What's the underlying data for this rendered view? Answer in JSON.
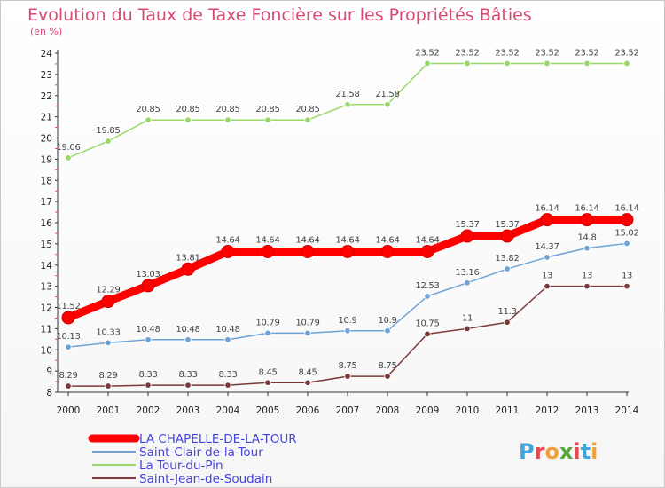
{
  "chart_data": {
    "type": "line",
    "title": "Evolution du Taux de Taxe Foncière sur les Propriétés Bâties",
    "subtitle": "(en %)",
    "xlabel": "",
    "ylabel": "",
    "ylim": [
      8,
      24
    ],
    "yticks": [
      "8",
      "9",
      "10",
      "11",
      "12",
      "13",
      "14",
      "15",
      "16",
      "17",
      "18",
      "19",
      "20",
      "21",
      "22",
      "23",
      "24"
    ],
    "x": [
      "2000",
      "2001",
      "2002",
      "2003",
      "2004",
      "2005",
      "2006",
      "2007",
      "2008",
      "2009",
      "2010",
      "2011",
      "2012",
      "2013",
      "2014"
    ],
    "grid": false,
    "legend": "bottom-left",
    "series": [
      {
        "name": "LA CHAPELLE-DE-LA-TOUR",
        "color": "#ff0000",
        "values": [
          11.52,
          12.29,
          13.03,
          13.81,
          14.64,
          14.64,
          14.64,
          14.64,
          14.64,
          14.64,
          15.37,
          15.37,
          16.14,
          16.14,
          16.14
        ],
        "labels": [
          "11.52",
          "12.29",
          "13.03",
          "13.81",
          "14.64",
          "14.64",
          "14.64",
          "14.64",
          "14.64",
          "14.64",
          "15.37",
          "15.37",
          "16.14",
          "16.14",
          "16.14"
        ]
      },
      {
        "name": "Saint-Clair-de-la-Tour",
        "color": "#6fa3d6",
        "values": [
          10.13,
          10.33,
          10.48,
          10.48,
          10.48,
          10.79,
          10.79,
          10.9,
          10.9,
          12.53,
          13.16,
          13.82,
          14.37,
          14.8,
          15.02
        ],
        "labels": [
          "10.13",
          "10.33",
          "10.48",
          "10.48",
          "10.48",
          "10.79",
          "10.79",
          "10.9",
          "10.9",
          "12.53",
          "13.16",
          "13.82",
          "14.37",
          "14.8",
          "15.02"
        ]
      },
      {
        "name": "La Tour-du-Pin",
        "color": "#99d86a",
        "values": [
          19.06,
          19.85,
          20.85,
          20.85,
          20.85,
          20.85,
          20.85,
          21.58,
          21.58,
          23.52,
          23.52,
          23.52,
          23.52,
          23.52,
          23.52
        ],
        "labels": [
          "19.06",
          "19.85",
          "20.85",
          "20.85",
          "20.85",
          "20.85",
          "20.85",
          "21.58",
          "21.58",
          "23.52",
          "23.52",
          "23.52",
          "23.52",
          "23.52",
          "23.52"
        ]
      },
      {
        "name": "Saint-Jean-de-Soudain",
        "color": "#7a3a3a",
        "values": [
          8.29,
          8.29,
          8.33,
          8.33,
          8.33,
          8.45,
          8.45,
          8.75,
          8.75,
          10.75,
          11,
          11.3,
          13,
          13,
          13
        ],
        "labels": [
          "8.29",
          "8.29",
          "8.33",
          "8.33",
          "8.33",
          "8.45",
          "8.45",
          "8.75",
          "8.75",
          "10.75",
          "11",
          "11.3",
          "13",
          "13",
          "13"
        ]
      }
    ]
  },
  "logo": {
    "text": "Proxiti",
    "letter_colors": [
      "#3fa5dc",
      "#e8474b",
      "#f2a13a",
      "#5aa83c",
      "#e8474b",
      "#3fa5dc",
      "#f2a13a"
    ]
  },
  "colors": {
    "title": "#d94a72",
    "axis": "#333333",
    "legend_text": "#4444dd"
  }
}
